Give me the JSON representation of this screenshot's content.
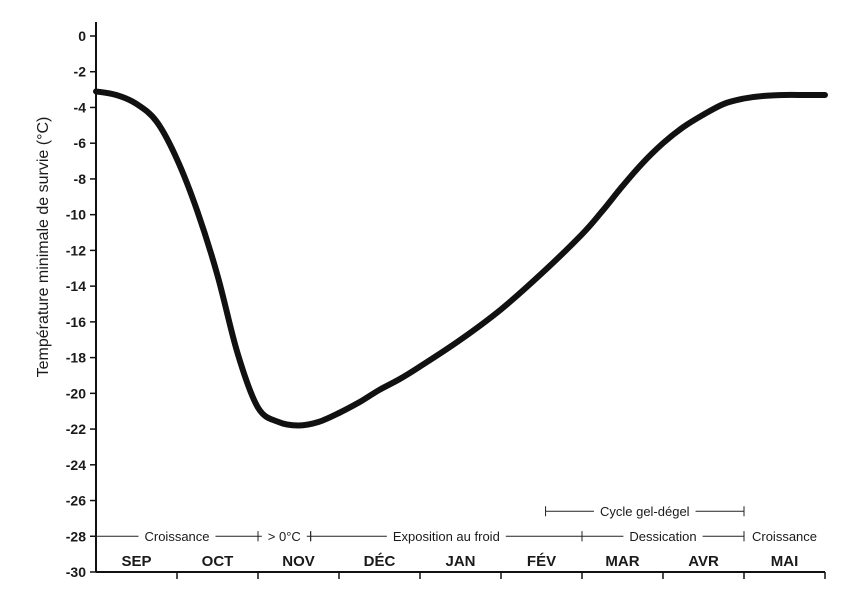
{
  "chart_data": {
    "type": "line",
    "title": "",
    "ylabel": "Température minimale de survie (°C)",
    "xlabel": "",
    "ylim": [
      -30,
      0
    ],
    "yticks": [
      0,
      -2,
      -4,
      -6,
      -8,
      -10,
      -12,
      -14,
      -16,
      -18,
      -20,
      -22,
      -24,
      -26,
      -28,
      -30
    ],
    "categories": [
      "SEP",
      "OCT",
      "NOV",
      "DÉC",
      "JAN",
      "FÉV",
      "MAR",
      "AVR",
      "MAI"
    ],
    "grid": false,
    "line_color": "#111111",
    "series": [
      {
        "x": [
          0.0,
          0.25,
          0.5,
          0.75,
          1.0,
          1.25,
          1.5,
          1.75,
          2.0,
          2.25,
          2.5,
          2.75,
          3.0,
          3.25,
          3.5,
          3.75,
          4.0,
          4.5,
          5.0,
          5.5,
          6.0,
          6.25,
          6.5,
          6.75,
          7.0,
          7.25,
          7.5,
          7.75,
          8.0,
          8.25,
          8.5,
          8.75,
          9.0
        ],
        "values": [
          -3.1,
          -3.3,
          -3.8,
          -4.8,
          -6.9,
          -9.8,
          -13.4,
          -17.8,
          -20.8,
          -21.6,
          -21.8,
          -21.6,
          -21.1,
          -20.5,
          -19.8,
          -19.2,
          -18.5,
          -17.0,
          -15.3,
          -13.3,
          -11.1,
          -9.8,
          -8.4,
          -7.1,
          -6.0,
          -5.1,
          -4.4,
          -3.8,
          -3.5,
          -3.35,
          -3.3,
          -3.3,
          -3.3
        ]
      }
    ],
    "periods": [
      {
        "label": "Croissance",
        "start": 0.0,
        "end": 2.0,
        "row": "bottom"
      },
      {
        "label": "> 0°C",
        "start": 2.0,
        "end": 2.65,
        "row": "bottom"
      },
      {
        "label": "Exposition au froid",
        "start": 2.65,
        "end": 6.0,
        "row": "bottom"
      },
      {
        "label": "Dessication",
        "start": 6.0,
        "end": 8.0,
        "row": "bottom"
      },
      {
        "label": "Croissance",
        "start": 8.0,
        "end": 9.0,
        "row": "bottom"
      },
      {
        "label": "Cycle gel-dégel",
        "start": 5.55,
        "end": 8.0,
        "row": "upper"
      }
    ]
  }
}
